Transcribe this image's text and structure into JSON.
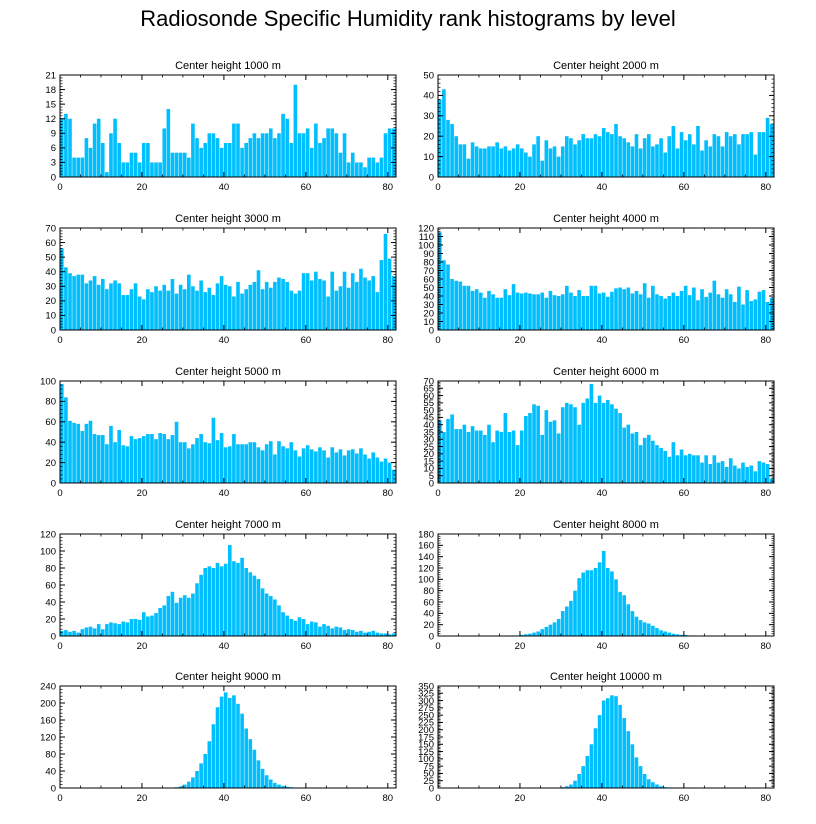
{
  "title": "Radiosonde Specific Humidity rank histograms by level",
  "bar_color": "#00bfff",
  "chart_data": [
    {
      "type": "bar",
      "title": "Center height 1000 m",
      "ylim": [
        0,
        21
      ],
      "yticks": [
        0,
        3,
        6,
        9,
        12,
        15,
        18,
        21
      ],
      "xlim": [
        0,
        82
      ],
      "xticks": [
        0,
        20,
        40,
        60,
        80
      ],
      "values": [
        12,
        13,
        12,
        4,
        4,
        4,
        8,
        6,
        11,
        12,
        7,
        1,
        9,
        12,
        7,
        3,
        3,
        5,
        5,
        3,
        7,
        7,
        3,
        3,
        3,
        10,
        14,
        5,
        5,
        5,
        5,
        4,
        11,
        8,
        6,
        7,
        9,
        9,
        8,
        6,
        7,
        7,
        11,
        11,
        6,
        7,
        8,
        9,
        8,
        9,
        9,
        10,
        8,
        9,
        13,
        12,
        7,
        19,
        9,
        9,
        10,
        6,
        11,
        7,
        8,
        10,
        10,
        9,
        5,
        9,
        3,
        5,
        3,
        3,
        2,
        4,
        4,
        3,
        4,
        9,
        10,
        10
      ]
    },
    {
      "type": "bar",
      "title": "Center height 2000 m",
      "ylim": [
        0,
        50
      ],
      "yticks": [
        0,
        10,
        20,
        30,
        40,
        50
      ],
      "xlim": [
        0,
        82
      ],
      "xticks": [
        0,
        20,
        40,
        60,
        80
      ],
      "values": [
        38,
        43,
        28,
        26,
        20,
        16,
        16,
        9,
        17,
        15,
        14,
        14,
        15,
        15,
        17,
        14,
        15,
        13,
        14,
        16,
        14,
        12,
        10,
        16,
        20,
        8,
        18,
        14,
        15,
        10,
        15,
        20,
        19,
        16,
        18,
        21,
        19,
        19,
        21,
        20,
        24,
        22,
        21,
        26,
        20,
        19,
        17,
        15,
        21,
        14,
        19,
        21,
        15,
        16,
        19,
        12,
        20,
        25,
        14,
        22,
        18,
        21,
        16,
        25,
        13,
        18,
        15,
        21,
        20,
        15,
        22,
        20,
        21,
        16,
        21,
        21,
        22,
        11,
        22,
        22,
        29,
        26
      ]
    },
    {
      "type": "bar",
      "title": "Center height 3000 m",
      "ylim": [
        0,
        70
      ],
      "yticks": [
        0,
        10,
        20,
        30,
        40,
        50,
        60,
        70
      ],
      "xlim": [
        0,
        82
      ],
      "xticks": [
        0,
        20,
        40,
        60,
        80
      ],
      "values": [
        56,
        43,
        39,
        37,
        38,
        38,
        32,
        34,
        37,
        31,
        35,
        28,
        32,
        34,
        32,
        24,
        24,
        28,
        32,
        23,
        21,
        28,
        26,
        30,
        27,
        31,
        27,
        35,
        25,
        31,
        28,
        38,
        30,
        27,
        34,
        26,
        29,
        24,
        32,
        37,
        31,
        30,
        23,
        33,
        25,
        28,
        31,
        33,
        41,
        28,
        33,
        29,
        33,
        36,
        35,
        33,
        27,
        25,
        27,
        39,
        39,
        34,
        40,
        35,
        34,
        23,
        40,
        27,
        30,
        40,
        29,
        39,
        33,
        42,
        36,
        34,
        37,
        26,
        48,
        66,
        49,
        37
      ]
    },
    {
      "type": "bar",
      "title": "Center height 4000 m",
      "ylim": [
        0,
        120
      ],
      "yticks": [
        0,
        10,
        20,
        30,
        40,
        50,
        60,
        70,
        80,
        90,
        100,
        110,
        120
      ],
      "xlim": [
        0,
        82
      ],
      "xticks": [
        0,
        20,
        40,
        60,
        80
      ],
      "values": [
        115,
        82,
        77,
        60,
        58,
        57,
        52,
        52,
        46,
        48,
        44,
        38,
        46,
        42,
        38,
        38,
        48,
        41,
        54,
        44,
        43,
        44,
        43,
        42,
        42,
        44,
        38,
        46,
        41,
        40,
        42,
        52,
        44,
        40,
        47,
        40,
        40,
        52,
        52,
        43,
        44,
        39,
        45,
        49,
        50,
        48,
        50,
        43,
        46,
        42,
        55,
        38,
        52,
        42,
        40,
        37,
        40,
        44,
        40,
        46,
        52,
        41,
        50,
        35,
        48,
        39,
        44,
        58,
        42,
        38,
        48,
        42,
        33,
        51,
        30,
        47,
        34,
        36,
        45,
        47,
        33,
        38
      ]
    },
    {
      "type": "bar",
      "title": "Center height 5000 m",
      "ylim": [
        0,
        100
      ],
      "yticks": [
        0,
        20,
        40,
        60,
        80,
        100
      ],
      "xlim": [
        0,
        82
      ],
      "xticks": [
        0,
        20,
        40,
        60,
        80
      ],
      "values": [
        97,
        84,
        61,
        59,
        58,
        51,
        58,
        61,
        48,
        47,
        47,
        38,
        56,
        40,
        52,
        37,
        36,
        46,
        43,
        44,
        46,
        48,
        48,
        43,
        49,
        48,
        43,
        47,
        60,
        40,
        40,
        34,
        38,
        44,
        48,
        40,
        39,
        64,
        42,
        49,
        35,
        36,
        48,
        38,
        38,
        38,
        40,
        40,
        35,
        32,
        38,
        41,
        28,
        41,
        36,
        34,
        40,
        32,
        26,
        34,
        37,
        33,
        31,
        35,
        32,
        25,
        35,
        30,
        33,
        27,
        32,
        33,
        29,
        34,
        28,
        24,
        30,
        25,
        21,
        24,
        20,
        13
      ]
    },
    {
      "type": "bar",
      "title": "Center height 6000 m",
      "ylim": [
        0,
        70
      ],
      "yticks": [
        0,
        5,
        10,
        15,
        20,
        25,
        30,
        35,
        40,
        45,
        50,
        55,
        60,
        65,
        70
      ],
      "xlim": [
        0,
        82
      ],
      "xticks": [
        0,
        20,
        40,
        60,
        80
      ],
      "values": [
        43,
        35,
        44,
        47,
        37,
        37,
        40,
        35,
        39,
        36,
        36,
        33,
        40,
        28,
        36,
        35,
        48,
        35,
        36,
        26,
        36,
        46,
        48,
        54,
        53,
        33,
        50,
        42,
        43,
        34,
        52,
        55,
        54,
        52,
        40,
        55,
        58,
        68,
        55,
        60,
        55,
        57,
        54,
        51,
        48,
        38,
        40,
        34,
        35,
        26,
        31,
        33,
        29,
        26,
        24,
        22,
        18,
        28,
        19,
        23,
        19,
        20,
        19,
        19,
        14,
        19,
        13,
        19,
        14,
        15,
        11,
        17,
        12,
        10,
        14,
        11,
        12,
        8,
        15,
        14,
        13,
        3
      ]
    },
    {
      "type": "bar",
      "title": "Center height 7000 m",
      "ylim": [
        0,
        120
      ],
      "yticks": [
        0,
        20,
        40,
        60,
        80,
        100,
        120
      ],
      "xlim": [
        0,
        82
      ],
      "xticks": [
        0,
        20,
        40,
        60,
        80
      ],
      "values": [
        6,
        7,
        5,
        6,
        4,
        8,
        10,
        11,
        9,
        14,
        8,
        14,
        16,
        15,
        14,
        17,
        16,
        20,
        20,
        19,
        28,
        23,
        24,
        27,
        33,
        36,
        47,
        52,
        39,
        45,
        48,
        45,
        50,
        62,
        72,
        80,
        82,
        80,
        86,
        82,
        85,
        107,
        88,
        86,
        92,
        80,
        75,
        71,
        67,
        56,
        50,
        47,
        43,
        36,
        28,
        24,
        20,
        18,
        22,
        20,
        14,
        17,
        16,
        11,
        14,
        12,
        9,
        11,
        10,
        7,
        8,
        7,
        5,
        6,
        4,
        5,
        6,
        4,
        3,
        3,
        2,
        3
      ]
    },
    {
      "type": "bar",
      "title": "Center height 8000 m",
      "ylim": [
        0,
        180
      ],
      "yticks": [
        0,
        20,
        40,
        60,
        80,
        100,
        120,
        140,
        160,
        180
      ],
      "xlim": [
        0,
        82
      ],
      "xticks": [
        0,
        20,
        40,
        60,
        80
      ],
      "values": [
        0,
        0,
        0,
        0,
        0,
        0,
        0,
        0,
        0,
        0,
        0,
        0,
        0,
        0,
        0,
        0,
        0,
        0,
        1,
        1,
        2,
        3,
        4,
        6,
        8,
        12,
        16,
        20,
        24,
        30,
        44,
        52,
        62,
        80,
        102,
        112,
        116,
        116,
        120,
        130,
        150,
        120,
        114,
        100,
        78,
        72,
        56,
        44,
        34,
        28,
        24,
        22,
        18,
        14,
        10,
        8,
        6,
        4,
        3,
        2,
        2,
        1,
        1,
        0,
        0,
        0,
        0,
        0,
        0,
        0,
        0,
        0,
        0,
        0,
        0,
        0,
        0,
        0,
        0,
        0,
        0,
        0
      ]
    },
    {
      "type": "bar",
      "title": "Center height 9000 m",
      "ylim": [
        0,
        240
      ],
      "yticks": [
        0,
        40,
        80,
        120,
        160,
        200,
        240
      ],
      "xlim": [
        0,
        82
      ],
      "xticks": [
        0,
        20,
        40,
        60,
        80
      ],
      "values": [
        0,
        0,
        0,
        0,
        0,
        0,
        0,
        0,
        0,
        0,
        0,
        0,
        0,
        0,
        0,
        0,
        0,
        0,
        0,
        0,
        0,
        0,
        0,
        0,
        0,
        0,
        0,
        1,
        2,
        4,
        8,
        15,
        25,
        40,
        58,
        80,
        110,
        150,
        190,
        215,
        225,
        212,
        218,
        198,
        175,
        140,
        115,
        90,
        65,
        45,
        30,
        20,
        12,
        8,
        5,
        3,
        2,
        1,
        1,
        0,
        0,
        0,
        0,
        0,
        0,
        0,
        0,
        0,
        0,
        0,
        0,
        0,
        0,
        0,
        0,
        0,
        0,
        0,
        0,
        0,
        0,
        0
      ]
    },
    {
      "type": "bar",
      "title": "Center height 10000 m",
      "ylim": [
        0,
        350
      ],
      "yticks": [
        0,
        25,
        50,
        75,
        100,
        125,
        150,
        175,
        200,
        225,
        250,
        275,
        300,
        325,
        350
      ],
      "xlim": [
        0,
        82
      ],
      "xticks": [
        0,
        20,
        40,
        60,
        80
      ],
      "values": [
        0,
        0,
        0,
        0,
        0,
        0,
        0,
        0,
        0,
        0,
        0,
        0,
        0,
        0,
        0,
        0,
        0,
        0,
        0,
        0,
        0,
        0,
        0,
        0,
        0,
        0,
        0,
        0,
        0,
        1,
        3,
        6,
        12,
        25,
        48,
        75,
        110,
        150,
        205,
        250,
        300,
        308,
        318,
        315,
        285,
        240,
        195,
        150,
        105,
        75,
        48,
        30,
        20,
        12,
        6,
        3,
        2,
        1,
        0,
        0,
        0,
        0,
        0,
        0,
        0,
        0,
        0,
        0,
        0,
        0,
        0,
        0,
        0,
        0,
        0,
        0,
        0,
        0,
        0,
        0,
        0,
        0
      ]
    }
  ]
}
